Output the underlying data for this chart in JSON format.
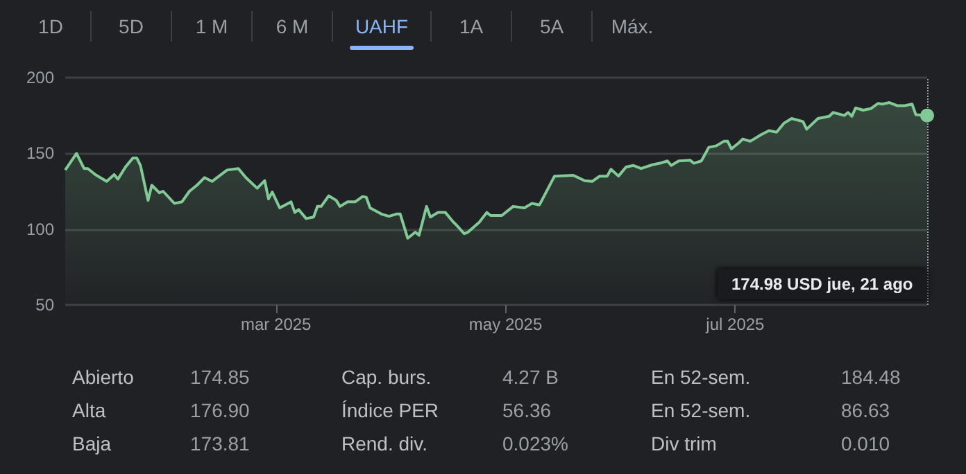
{
  "chart_data": [
    {
      "type": "other",
      "annotations": [
        "1D",
        "5D",
        "1 M",
        "6 M",
        "UAHF",
        "1A",
        "5A",
        "Máx."
      ]
    },
    {
      "type": "area",
      "x": [
        "2025-01-04",
        "2025-01-07",
        "2025-01-09",
        "2025-01-10",
        "2025-01-12",
        "2025-01-14",
        "2025-01-15",
        "2025-01-17",
        "2025-01-18",
        "2025-01-20",
        "2025-01-22",
        "2025-01-23",
        "2025-01-24",
        "2025-01-26",
        "2025-01-27",
        "2025-01-29",
        "2025-01-30",
        "2025-02-02",
        "2025-02-04",
        "2025-02-06",
        "2025-02-08",
        "2025-02-10",
        "2025-02-12",
        "2025-02-16",
        "2025-02-19",
        "2025-02-21",
        "2025-02-24",
        "2025-02-26",
        "2025-02-27",
        "2025-02-28",
        "2025-03-02",
        "2025-03-05",
        "2025-03-06",
        "2025-03-07",
        "2025-03-09",
        "2025-03-11",
        "2025-03-12",
        "2025-03-13",
        "2025-03-15",
        "2025-03-17",
        "2025-03-18",
        "2025-03-20",
        "2025-03-22",
        "2025-03-24",
        "2025-03-25",
        "2025-03-26",
        "2025-03-29",
        "2025-03-31",
        "2025-04-02",
        "2025-04-03",
        "2025-04-05",
        "2025-04-07",
        "2025-04-08",
        "2025-04-10",
        "2025-04-11",
        "2025-04-13",
        "2025-04-15",
        "2025-04-17",
        "2025-04-18",
        "2025-04-20",
        "2025-04-21",
        "2025-04-24",
        "2025-04-26",
        "2025-04-27",
        "2025-04-30",
        "2025-05-03",
        "2025-05-06",
        "2025-05-08",
        "2025-05-10",
        "2025-05-14",
        "2025-05-19",
        "2025-05-22",
        "2025-05-24",
        "2025-05-26",
        "2025-05-28",
        "2025-05-29",
        "2025-05-31",
        "2025-06-02",
        "2025-06-04",
        "2025-06-06",
        "2025-06-09",
        "2025-06-11",
        "2025-06-13",
        "2025-06-14",
        "2025-06-16",
        "2025-06-19",
        "2025-06-20",
        "2025-06-22",
        "2025-06-24",
        "2025-06-26",
        "2025-06-28",
        "2025-06-29",
        "2025-06-30",
        "2025-07-02",
        "2025-07-03",
        "2025-07-05",
        "2025-07-08",
        "2025-07-10",
        "2025-07-12",
        "2025-07-14",
        "2025-07-16",
        "2025-07-19",
        "2025-07-20",
        "2025-07-23",
        "2025-07-26",
        "2025-07-27",
        "2025-07-30",
        "2025-07-31",
        "2025-08-01",
        "2025-08-02",
        "2025-08-04",
        "2025-08-06",
        "2025-08-08",
        "2025-08-09",
        "2025-08-11",
        "2025-08-13",
        "2025-08-15",
        "2025-08-17",
        "2025-08-18",
        "2025-08-21"
      ],
      "series": [
        {
          "color": "#81c995",
          "values": [
            139,
            150,
            140,
            140,
            136,
            133,
            131.5,
            136,
            133,
            141,
            147,
            147,
            142,
            119,
            129,
            124,
            125,
            117,
            118,
            125,
            129,
            134,
            131.5,
            139,
            140,
            134,
            127,
            132,
            120,
            124.5,
            114,
            118,
            111,
            113,
            107,
            108,
            115,
            115,
            122,
            119,
            115,
            118,
            118,
            121.5,
            121,
            114,
            110,
            108.5,
            110,
            110,
            94,
            98,
            96,
            115,
            108,
            111,
            111,
            105,
            102.5,
            97,
            98,
            104.5,
            111,
            109,
            109,
            115,
            114,
            117,
            116,
            135,
            135.5,
            132,
            131.5,
            135,
            135,
            139.5,
            135,
            141,
            142,
            140,
            142.5,
            143.5,
            145,
            142,
            145,
            145.5,
            143.5,
            145,
            154,
            155,
            158,
            158,
            153,
            157,
            159.5,
            158,
            162.5,
            165,
            164,
            170,
            173,
            171,
            166,
            173,
            174.5,
            177,
            175,
            177,
            174.5,
            180,
            178.5,
            179.5,
            183,
            182.5,
            183.5,
            181.5,
            181.5,
            182.5,
            175.5,
            174.98
          ]
        }
      ],
      "xlim": [
        "2025-01-04",
        "2025-08-21"
      ],
      "xticks": [
        {
          "value": "2025-03-01",
          "label": "mar 2025"
        },
        {
          "value": "2025-05-01",
          "label": "may 2025"
        },
        {
          "value": "2025-07-01",
          "label": "jul 2025"
        }
      ],
      "ylim": [
        50,
        200
      ],
      "yticks": [
        50,
        100,
        150,
        200
      ],
      "grid": "y",
      "marker": "none",
      "annotations": [
        "174.98 USD jue, 21 ago"
      ]
    },
    {
      "type": "other",
      "annotations": [
        "Abierto",
        "174.85",
        "Cap. burs.",
        "4.27 B",
        "En 52-sem.",
        "184.48",
        "Alta",
        "176.90",
        "Índice PER",
        "56.36",
        "En 52-sem.",
        "86.63",
        "Baja",
        "173.81",
        "Rend. div.",
        "0.023%",
        "Div trim",
        "0.010"
      ]
    }
  ]
}
